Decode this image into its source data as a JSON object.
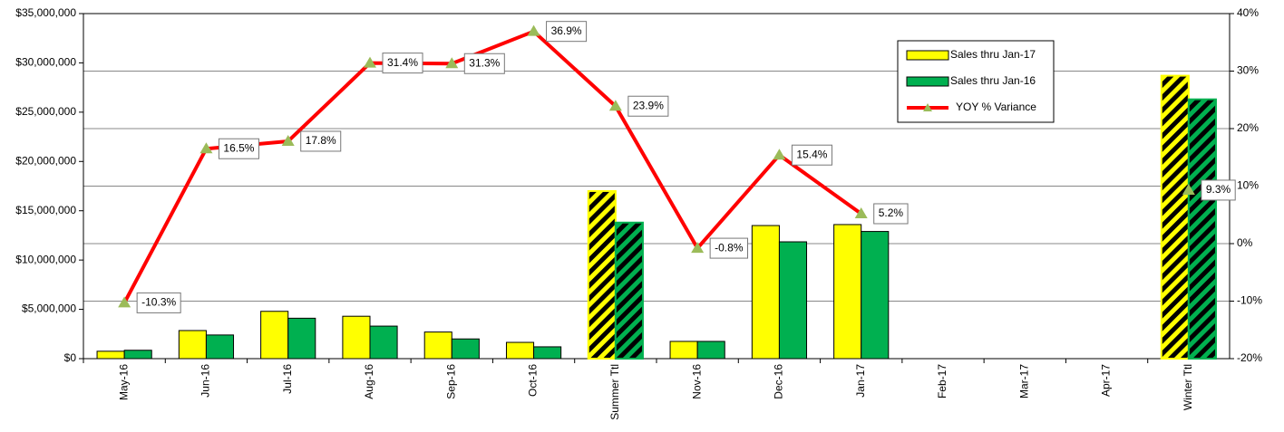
{
  "chart_data": {
    "type": "bar_line",
    "categories": [
      "May-16",
      "Jun-16",
      "Jul-16",
      "Aug-16",
      "Sep-16",
      "Oct-16",
      "Summer Ttl",
      "Nov-16",
      "Dec-16",
      "Jan-17",
      "Feb-17",
      "Mar-17",
      "Apr-17",
      "Winter Ttl"
    ],
    "series": [
      {
        "name": "Sales thru Jan-17",
        "color": "#ffff00",
        "type": "bar",
        "values": [
          750000,
          2850000,
          4800000,
          4300000,
          2700000,
          1650000,
          17000000,
          1750000,
          13500000,
          13600000,
          null,
          null,
          null,
          28700000
        ]
      },
      {
        "name": "Sales thru Jan-16",
        "color": "#00b050",
        "type": "bar",
        "values": [
          850000,
          2400000,
          4100000,
          3300000,
          2000000,
          1200000,
          13800000,
          1750000,
          11850000,
          12900000,
          null,
          null,
          null,
          26300000
        ]
      },
      {
        "name": "YOY % Variance",
        "color": "#ff0000",
        "marker_color": "#9bbb59",
        "type": "line",
        "axis": "y2",
        "values": [
          -10.3,
          16.5,
          17.8,
          31.4,
          31.3,
          36.9,
          23.9,
          -0.8,
          15.4,
          5.2,
          null,
          null,
          null,
          9.3
        ],
        "value_labels": [
          "-10.3%",
          "16.5%",
          "17.8%",
          "31.4%",
          "31.3%",
          "36.9%",
          "23.9%",
          "-0.8%",
          "15.4%",
          "5.2%",
          null,
          null,
          null,
          "9.3%"
        ]
      }
    ],
    "hatched": [
      6,
      13
    ],
    "ylim": [
      0,
      35000000
    ],
    "yticks": [
      {
        "value": 0,
        "label": "$0"
      },
      {
        "value": 5000000,
        "label": "$5,000,000"
      },
      {
        "value": 10000000,
        "label": "$10,000,000"
      },
      {
        "value": 15000000,
        "label": "$15,000,000"
      },
      {
        "value": 20000000,
        "label": "$20,000,000"
      },
      {
        "value": 25000000,
        "label": "$25,000,000"
      },
      {
        "value": 30000000,
        "label": "$30,000,000"
      },
      {
        "value": 35000000,
        "label": "$35,000,000"
      }
    ],
    "y2lim": [
      -20,
      40
    ],
    "y2ticks": [
      {
        "value": -20,
        "label": "-20%"
      },
      {
        "value": -10,
        "label": "-10%"
      },
      {
        "value": 0,
        "label": "0%"
      },
      {
        "value": 10,
        "label": "10%"
      },
      {
        "value": 20,
        "label": "20%"
      },
      {
        "value": 30,
        "label": "30%"
      },
      {
        "value": 40,
        "label": "40%"
      }
    ],
    "grid": "y2",
    "legend": "upper right"
  }
}
